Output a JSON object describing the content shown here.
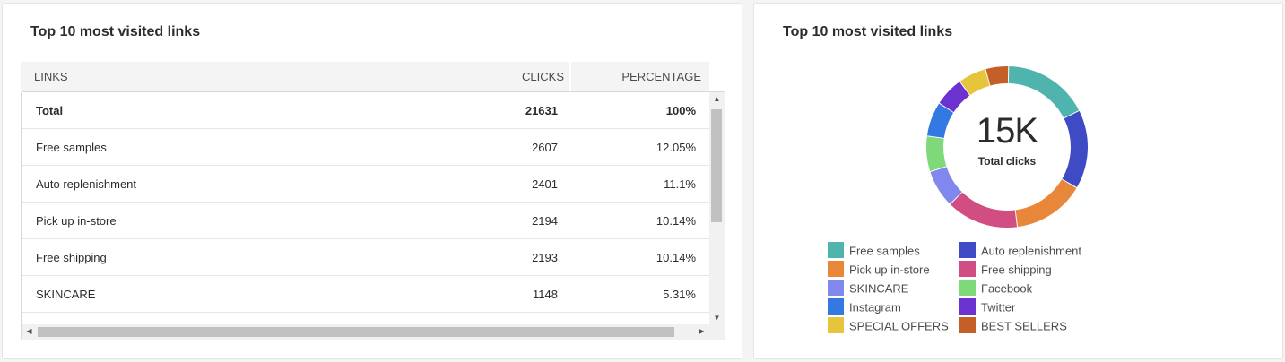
{
  "left_card": {
    "title": "Top 10 most visited links",
    "headers": {
      "links": "LINKS",
      "clicks": "CLICKS",
      "percentage": "PERCENTAGE"
    },
    "rows": [
      {
        "link": "Total",
        "clicks": "21631",
        "percentage": "100%"
      },
      {
        "link": "Free samples",
        "clicks": "2607",
        "percentage": "12.05%"
      },
      {
        "link": "Auto replenishment",
        "clicks": "2401",
        "percentage": "11.1%"
      },
      {
        "link": "Pick up in-store",
        "clicks": "2194",
        "percentage": "10.14%"
      },
      {
        "link": "Free shipping",
        "clicks": "2193",
        "percentage": "10.14%"
      },
      {
        "link": "SKINCARE",
        "clicks": "1148",
        "percentage": "5.31%"
      }
    ]
  },
  "right_card": {
    "title": "Top 10 most visited links",
    "donut": {
      "value": "15K",
      "label": "Total clicks"
    },
    "legend": [
      {
        "label": "Free samples",
        "color": "#4fb4ae"
      },
      {
        "label": "Auto replenishment",
        "color": "#3f4bc4"
      },
      {
        "label": "Pick up in-store",
        "color": "#e8873a"
      },
      {
        "label": "Free shipping",
        "color": "#d14e83"
      },
      {
        "label": "SKINCARE",
        "color": "#8088ed"
      },
      {
        "label": "Facebook",
        "color": "#7fd97a"
      },
      {
        "label": "Instagram",
        "color": "#3478e2"
      },
      {
        "label": "Twitter",
        "color": "#6c32cf"
      },
      {
        "label": "SPECIAL OFFERS",
        "color": "#e6c43c"
      },
      {
        "label": "BEST SELLERS",
        "color": "#c45f28"
      }
    ]
  },
  "chart_data": {
    "type": "pie",
    "categories": [
      "Free samples",
      "Auto replenishment",
      "Pick up in-store",
      "Free shipping",
      "SKINCARE",
      "Facebook",
      "Instagram",
      "Twitter",
      "SPECIAL OFFERS",
      "BEST SELLERS"
    ],
    "values": [
      2607,
      2401,
      2194,
      2193,
      1148,
      1080,
      1050,
      900,
      850,
      700
    ],
    "colors": [
      "#4fb4ae",
      "#3f4bc4",
      "#e8873a",
      "#d14e83",
      "#8088ed",
      "#7fd97a",
      "#3478e2",
      "#6c32cf",
      "#e6c43c",
      "#c45f28"
    ],
    "center_value": "15K",
    "center_label": "Total clicks",
    "title": "Top 10 most visited links",
    "legend_placement": "bottom"
  }
}
